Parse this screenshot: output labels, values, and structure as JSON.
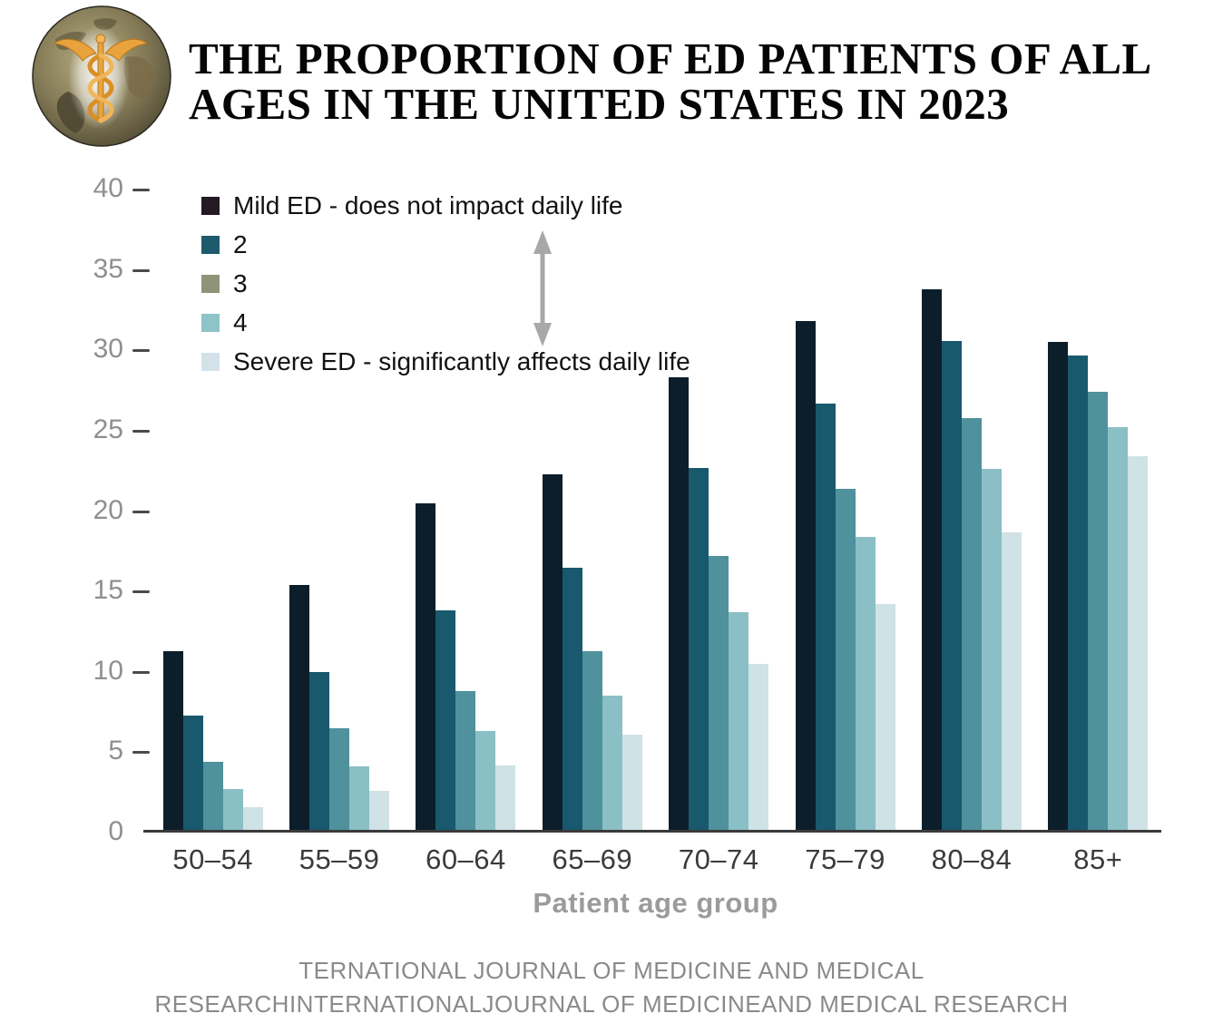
{
  "header": {
    "title_line1": "THE PROPORTION OF ED PATIENTS OF ALL",
    "title_line2": "AGES IN THE UNITED STATES IN 2023"
  },
  "legend": {
    "items": [
      {
        "label": "Mild ED - does not impact daily life",
        "color": "#241a23"
      },
      {
        "label": "2",
        "color": "#1d5a6b"
      },
      {
        "label": "3",
        "color": "#8f9478"
      },
      {
        "label": "4",
        "color": "#8ec4c8"
      },
      {
        "label": "Severe ED - significantly affects daily life",
        "color": "#d3e2e9"
      }
    ]
  },
  "chart_data": {
    "type": "bar",
    "title": "THE PROPORTION OF ED PATIENTS OF ALL AGES IN THE UNITED STATES IN 2023",
    "xlabel": "Patient age group",
    "ylabel": "",
    "ylim": [
      0,
      40
    ],
    "yticks": [
      0,
      5,
      10,
      15,
      20,
      25,
      30,
      35,
      40
    ],
    "grid": false,
    "legend_position": "upper-left-inside",
    "categories": [
      "50–54",
      "55–59",
      "60–64",
      "65–69",
      "70–74",
      "75–79",
      "80–84",
      "85+"
    ],
    "series": [
      {
        "name": "Mild ED - does not impact daily life",
        "color": "#0d1e2b",
        "values": [
          11.3,
          15.4,
          20.5,
          22.3,
          28.3,
          31.8,
          33.8,
          30.5
        ]
      },
      {
        "name": "2",
        "color": "#18596e",
        "values": [
          7.3,
          10.0,
          13.8,
          16.5,
          22.7,
          26.7,
          30.6,
          29.7
        ]
      },
      {
        "name": "3",
        "color": "#4f919c",
        "values": [
          4.4,
          6.5,
          8.8,
          11.3,
          17.2,
          21.4,
          25.8,
          27.4
        ]
      },
      {
        "name": "4",
        "color": "#8abfc5",
        "values": [
          2.7,
          4.1,
          6.3,
          8.5,
          13.7,
          18.4,
          22.6,
          25.2
        ]
      },
      {
        "name": "Severe ED - significantly affects daily life",
        "color": "#cfe2e6",
        "values": [
          1.6,
          2.6,
          4.2,
          6.1,
          10.5,
          14.2,
          18.7,
          23.4
        ]
      }
    ]
  },
  "footer": {
    "line1": "TERNATIONAL JOURNAL OF MEDICINE AND MEDICAL",
    "line2": "RESEARCHINTERNATIONALJOURNAL OF MEDICINEAND MEDICAL RESEARCH"
  }
}
